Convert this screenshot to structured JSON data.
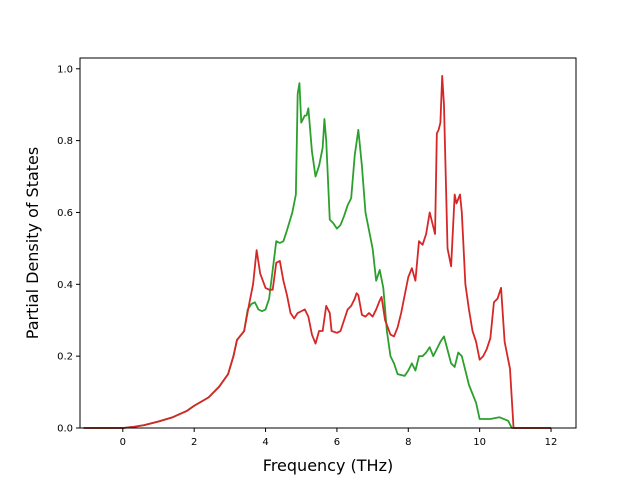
{
  "chart_data": {
    "type": "line",
    "title": "",
    "xlabel": "Frequency (THz)",
    "ylabel": "Partial Density of States",
    "xlim": [
      -1.2,
      12.7
    ],
    "ylim": [
      0,
      1.03
    ],
    "xticks": [
      0,
      2,
      4,
      6,
      8,
      10,
      12
    ],
    "yticks": [
      0.0,
      0.2,
      0.4,
      0.6,
      0.8,
      1.0
    ],
    "xtick_labels": [
      "0",
      "2",
      "4",
      "6",
      "8",
      "10",
      "12"
    ],
    "ytick_labels": [
      "0.0",
      "0.2",
      "0.4",
      "0.6",
      "0.8",
      "1.0"
    ],
    "grid": false,
    "legend": "none",
    "series": [
      {
        "color": "#2ca02c",
        "points": [
          [
            -1.1,
            0
          ],
          [
            -0.3,
            0
          ],
          [
            0,
            0
          ],
          [
            0.3,
            0.003
          ],
          [
            0.6,
            0.008
          ],
          [
            1.0,
            0.018
          ],
          [
            1.4,
            0.03
          ],
          [
            1.8,
            0.048
          ],
          [
            2.0,
            0.062
          ],
          [
            2.4,
            0.085
          ],
          [
            2.7,
            0.115
          ],
          [
            2.95,
            0.15
          ],
          [
            3.1,
            0.2
          ],
          [
            3.2,
            0.245
          ],
          [
            3.4,
            0.27
          ],
          [
            3.5,
            0.33
          ],
          [
            3.6,
            0.345
          ],
          [
            3.7,
            0.35
          ],
          [
            3.8,
            0.33
          ],
          [
            3.9,
            0.325
          ],
          [
            4.0,
            0.33
          ],
          [
            4.1,
            0.36
          ],
          [
            4.2,
            0.44
          ],
          [
            4.3,
            0.52
          ],
          [
            4.4,
            0.515
          ],
          [
            4.5,
            0.52
          ],
          [
            4.6,
            0.55
          ],
          [
            4.75,
            0.6
          ],
          [
            4.85,
            0.65
          ],
          [
            4.9,
            0.93
          ],
          [
            4.95,
            0.96
          ],
          [
            5.0,
            0.85
          ],
          [
            5.05,
            0.86
          ],
          [
            5.1,
            0.87
          ],
          [
            5.15,
            0.87
          ],
          [
            5.2,
            0.89
          ],
          [
            5.3,
            0.77
          ],
          [
            5.4,
            0.7
          ],
          [
            5.5,
            0.73
          ],
          [
            5.6,
            0.78
          ],
          [
            5.65,
            0.86
          ],
          [
            5.7,
            0.8
          ],
          [
            5.8,
            0.58
          ],
          [
            5.9,
            0.57
          ],
          [
            6.0,
            0.555
          ],
          [
            6.1,
            0.565
          ],
          [
            6.2,
            0.59
          ],
          [
            6.3,
            0.62
          ],
          [
            6.4,
            0.64
          ],
          [
            6.5,
            0.76
          ],
          [
            6.6,
            0.83
          ],
          [
            6.7,
            0.73
          ],
          [
            6.8,
            0.6
          ],
          [
            6.9,
            0.55
          ],
          [
            7.0,
            0.5
          ],
          [
            7.1,
            0.41
          ],
          [
            7.2,
            0.44
          ],
          [
            7.3,
            0.39
          ],
          [
            7.4,
            0.27
          ],
          [
            7.5,
            0.2
          ],
          [
            7.6,
            0.18
          ],
          [
            7.7,
            0.15
          ],
          [
            7.9,
            0.145
          ],
          [
            8.0,
            0.16
          ],
          [
            8.1,
            0.18
          ],
          [
            8.2,
            0.16
          ],
          [
            8.3,
            0.2
          ],
          [
            8.4,
            0.2
          ],
          [
            8.5,
            0.21
          ],
          [
            8.6,
            0.225
          ],
          [
            8.7,
            0.2
          ],
          [
            8.8,
            0.22
          ],
          [
            8.9,
            0.24
          ],
          [
            9.0,
            0.255
          ],
          [
            9.2,
            0.18
          ],
          [
            9.3,
            0.17
          ],
          [
            9.4,
            0.21
          ],
          [
            9.5,
            0.2
          ],
          [
            9.6,
            0.16
          ],
          [
            9.7,
            0.12
          ],
          [
            9.9,
            0.07
          ],
          [
            10.0,
            0.025
          ],
          [
            10.3,
            0.025
          ],
          [
            10.55,
            0.03
          ],
          [
            10.8,
            0.02
          ],
          [
            10.9,
            0.0
          ],
          [
            11.5,
            0
          ],
          [
            12.0,
            0
          ]
        ]
      },
      {
        "color": "#d62728",
        "points": [
          [
            -1.1,
            0
          ],
          [
            -0.3,
            0
          ],
          [
            0,
            0
          ],
          [
            0.3,
            0.003
          ],
          [
            0.6,
            0.008
          ],
          [
            1.0,
            0.018
          ],
          [
            1.4,
            0.03
          ],
          [
            1.8,
            0.048
          ],
          [
            2.0,
            0.062
          ],
          [
            2.4,
            0.085
          ],
          [
            2.7,
            0.115
          ],
          [
            2.95,
            0.15
          ],
          [
            3.1,
            0.2
          ],
          [
            3.2,
            0.245
          ],
          [
            3.4,
            0.27
          ],
          [
            3.55,
            0.35
          ],
          [
            3.65,
            0.4
          ],
          [
            3.75,
            0.495
          ],
          [
            3.85,
            0.43
          ],
          [
            4.0,
            0.39
          ],
          [
            4.1,
            0.385
          ],
          [
            4.2,
            0.385
          ],
          [
            4.3,
            0.46
          ],
          [
            4.4,
            0.465
          ],
          [
            4.5,
            0.41
          ],
          [
            4.6,
            0.37
          ],
          [
            4.7,
            0.32
          ],
          [
            4.8,
            0.305
          ],
          [
            4.9,
            0.32
          ],
          [
            5.0,
            0.325
          ],
          [
            5.1,
            0.33
          ],
          [
            5.2,
            0.31
          ],
          [
            5.3,
            0.26
          ],
          [
            5.4,
            0.235
          ],
          [
            5.5,
            0.27
          ],
          [
            5.6,
            0.27
          ],
          [
            5.7,
            0.34
          ],
          [
            5.8,
            0.32
          ],
          [
            5.85,
            0.27
          ],
          [
            6.0,
            0.265
          ],
          [
            6.1,
            0.27
          ],
          [
            6.2,
            0.3
          ],
          [
            6.3,
            0.33
          ],
          [
            6.4,
            0.34
          ],
          [
            6.5,
            0.36
          ],
          [
            6.55,
            0.375
          ],
          [
            6.6,
            0.37
          ],
          [
            6.7,
            0.315
          ],
          [
            6.8,
            0.31
          ],
          [
            6.9,
            0.32
          ],
          [
            7.0,
            0.31
          ],
          [
            7.1,
            0.33
          ],
          [
            7.2,
            0.355
          ],
          [
            7.25,
            0.365
          ],
          [
            7.35,
            0.3
          ],
          [
            7.5,
            0.26
          ],
          [
            7.6,
            0.255
          ],
          [
            7.7,
            0.28
          ],
          [
            7.8,
            0.32
          ],
          [
            7.9,
            0.37
          ],
          [
            8.0,
            0.42
          ],
          [
            8.1,
            0.445
          ],
          [
            8.2,
            0.41
          ],
          [
            8.3,
            0.52
          ],
          [
            8.4,
            0.51
          ],
          [
            8.5,
            0.54
          ],
          [
            8.6,
            0.6
          ],
          [
            8.7,
            0.56
          ],
          [
            8.75,
            0.54
          ],
          [
            8.8,
            0.82
          ],
          [
            8.85,
            0.83
          ],
          [
            8.9,
            0.85
          ],
          [
            8.95,
            0.98
          ],
          [
            9.0,
            0.9
          ],
          [
            9.1,
            0.5
          ],
          [
            9.2,
            0.45
          ],
          [
            9.3,
            0.65
          ],
          [
            9.35,
            0.625
          ],
          [
            9.45,
            0.65
          ],
          [
            9.5,
            0.6
          ],
          [
            9.6,
            0.4
          ],
          [
            9.7,
            0.33
          ],
          [
            9.8,
            0.27
          ],
          [
            9.9,
            0.24
          ],
          [
            10.0,
            0.19
          ],
          [
            10.1,
            0.2
          ],
          [
            10.2,
            0.22
          ],
          [
            10.3,
            0.25
          ],
          [
            10.4,
            0.35
          ],
          [
            10.5,
            0.36
          ],
          [
            10.6,
            0.39
          ],
          [
            10.7,
            0.24
          ],
          [
            10.85,
            0.165
          ],
          [
            10.95,
            0.0
          ],
          [
            11.5,
            0
          ],
          [
            12.0,
            0
          ]
        ]
      }
    ]
  }
}
